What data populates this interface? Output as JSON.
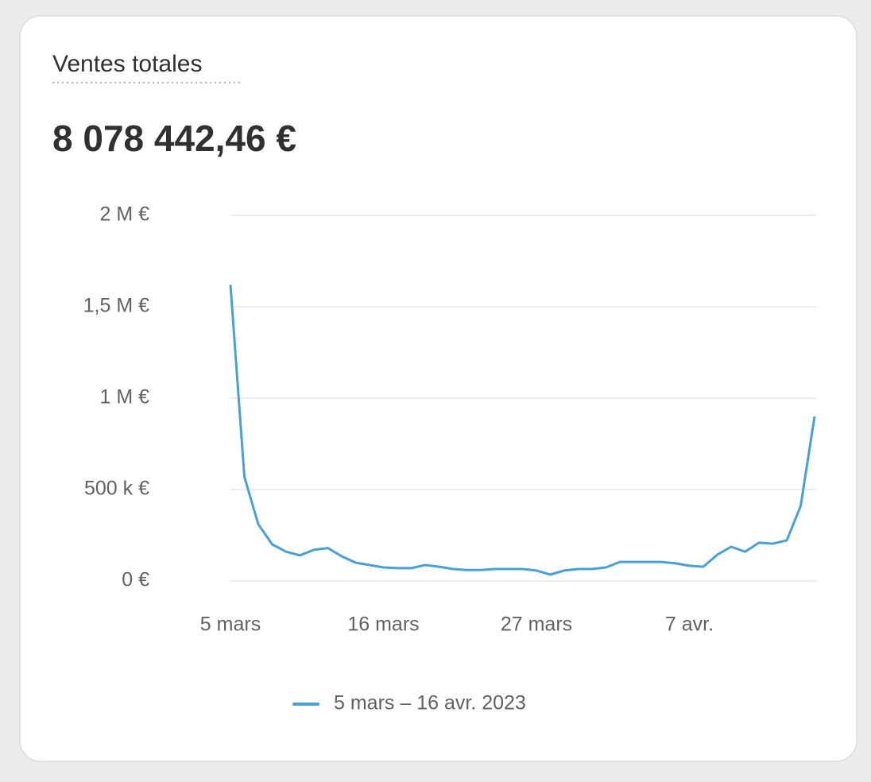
{
  "card": {
    "title": "Ventes totales",
    "total": "8 078 442,46 €"
  },
  "chart_data": {
    "type": "line",
    "categories": [
      "5 mars",
      null,
      null,
      null,
      null,
      null,
      null,
      null,
      null,
      null,
      null,
      "16 mars",
      null,
      null,
      null,
      null,
      null,
      null,
      null,
      null,
      null,
      null,
      "27 mars",
      null,
      null,
      null,
      null,
      null,
      null,
      null,
      null,
      null,
      null,
      "7 avr.",
      null,
      null,
      null,
      null,
      null,
      null,
      null,
      null,
      null
    ],
    "series": [
      {
        "name": "5 mars – 16 avr. 2023",
        "color": "#4a9fd6",
        "values": [
          1620000,
          570000,
          310000,
          200000,
          160000,
          140000,
          170000,
          180000,
          135000,
          100000,
          87000,
          74000,
          70000,
          70000,
          87000,
          78000,
          65000,
          60000,
          60000,
          65000,
          65000,
          65000,
          57000,
          35000,
          57000,
          65000,
          65000,
          74000,
          104000,
          104000,
          104000,
          104000,
          96000,
          83000,
          78000,
          143000,
          187000,
          160000,
          209000,
          204000,
          222000,
          410000,
          900000
        ]
      }
    ],
    "ylim": [
      0,
      2000000
    ],
    "yticks": [
      {
        "value": 0,
        "label": "0 €"
      },
      {
        "value": 500000,
        "label": "500 k €"
      },
      {
        "value": 1000000,
        "label": "1 M €"
      },
      {
        "value": 1500000,
        "label": "1,5 M €"
      },
      {
        "value": 2000000,
        "label": "2 M €"
      }
    ],
    "grid": true
  }
}
